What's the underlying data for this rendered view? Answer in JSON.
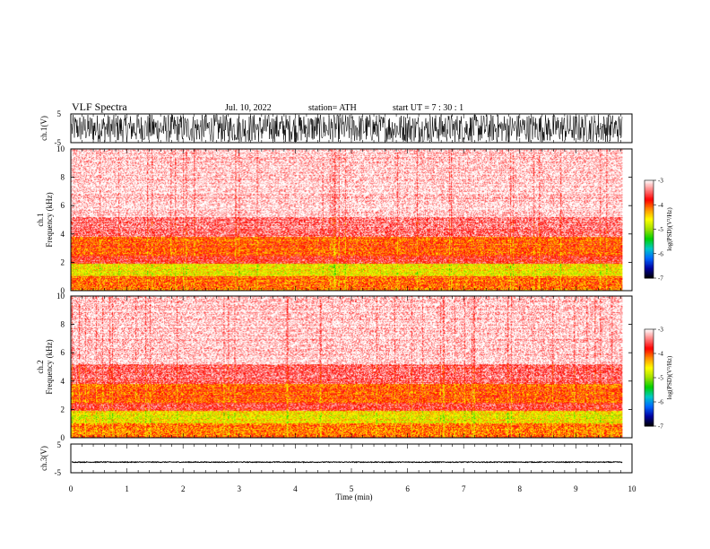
{
  "header": {
    "title": "VLF  Spectra",
    "date": "Jul.  10, 2022",
    "station": "station= ATH",
    "start": "start  UT  =    7  : 30 : 1"
  },
  "chart_data": {
    "type": "heatmap",
    "xlabel": "Time  (min)",
    "xlim": [
      0,
      10
    ],
    "x_ticks": [
      "0",
      "1",
      "2",
      "3",
      "4",
      "5",
      "6",
      "7",
      "8",
      "9",
      "10"
    ],
    "data_end_min": 9.83,
    "panels": [
      {
        "label": "ch.1(V)",
        "kind": "waveform",
        "ylim": [
          -5,
          5
        ],
        "y_ticks": [
          "5",
          "-5"
        ],
        "amplitude": "full-scale dense noise"
      },
      {
        "label": "ch.1",
        "ylabel": "Frequency  (kHz)",
        "kind": "spectrogram",
        "ylim": [
          0,
          10
        ],
        "y_ticks": [
          "10",
          "8",
          "6",
          "4",
          "2",
          "0"
        ],
        "freq_bands_khz": [
          {
            "from": 0,
            "to": 1.0,
            "level": -4.1
          },
          {
            "from": 1.0,
            "to": 1.9,
            "level": -4.6
          },
          {
            "from": 1.9,
            "to": 2.5,
            "level": -3.7
          },
          {
            "from": 2.5,
            "to": 3.8,
            "level": -4.0
          },
          {
            "from": 3.8,
            "to": 5.2,
            "level": -3.4
          },
          {
            "from": 5.2,
            "to": 10,
            "level": -3.1
          }
        ]
      },
      {
        "label": "ch.2",
        "ylabel": "Frequency  (kHz)",
        "kind": "spectrogram",
        "ylim": [
          0,
          10
        ],
        "y_ticks": [
          "10",
          "8",
          "6",
          "4",
          "2",
          "0"
        ],
        "freq_bands_khz": [
          {
            "from": 0,
            "to": 1.0,
            "level": -4.1
          },
          {
            "from": 1.0,
            "to": 1.9,
            "level": -4.6
          },
          {
            "from": 1.9,
            "to": 2.5,
            "level": -3.6
          },
          {
            "from": 2.5,
            "to": 3.8,
            "level": -4.0
          },
          {
            "from": 3.8,
            "to": 5.2,
            "level": -3.5
          },
          {
            "from": 5.2,
            "to": 10,
            "level": -3.1
          }
        ]
      },
      {
        "label": "ch.3(V)",
        "kind": "waveform",
        "ylim": [
          -5,
          5
        ],
        "y_ticks": [
          "5",
          "-5"
        ],
        "offset": -1.3,
        "amplitude": "near-flat trace"
      }
    ],
    "colorbar": {
      "label": "log(PSD)(V²/Hz)",
      "range": [
        -7,
        -3
      ],
      "ticks": [
        "-3",
        "-4",
        "-5",
        "-6",
        "-7"
      ],
      "colors": [
        "#000000",
        "#0000a0",
        "#0066ff",
        "#00c8c8",
        "#00d000",
        "#a0e000",
        "#ffff00",
        "#ff9000",
        "#ff0000",
        "#ff8080",
        "#ffffff"
      ]
    }
  }
}
